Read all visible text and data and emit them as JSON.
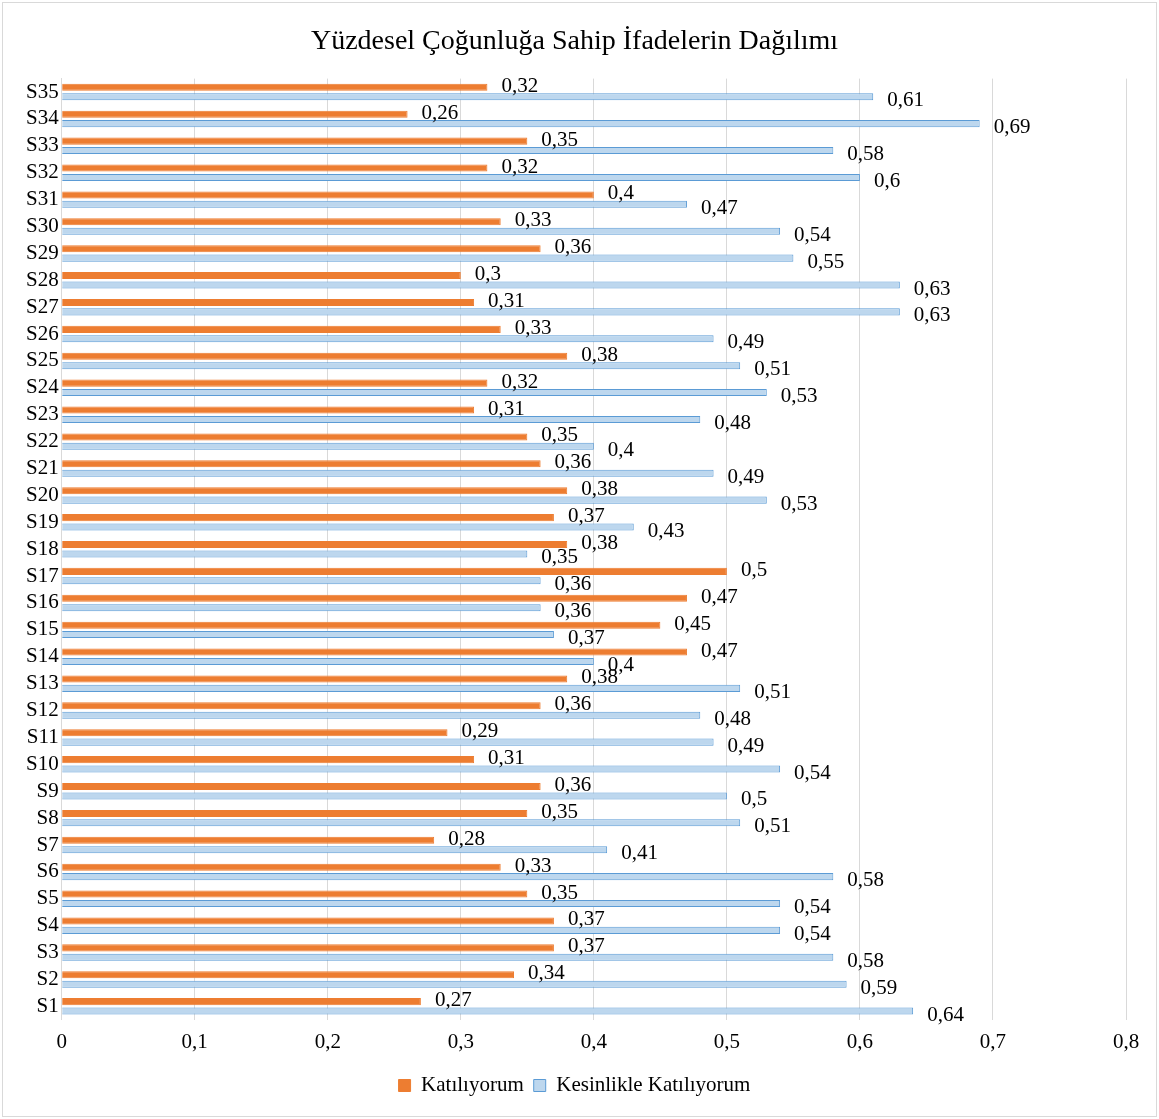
{
  "chart_data": {
    "type": "bar",
    "orientation": "horizontal",
    "title": "Yüzdesel Çoğunluğa Sahip İfadelerin Dağılımı",
    "categories": [
      "S35",
      "S34",
      "S33",
      "S32",
      "S31",
      "S30",
      "S29",
      "S28",
      "S27",
      "S26",
      "S25",
      "S24",
      "S23",
      "S22",
      "S21",
      "S20",
      "S19",
      "S18",
      "S17",
      "S16",
      "S15",
      "S14",
      "S13",
      "S12",
      "S11",
      "S10",
      "S9",
      "S8",
      "S7",
      "S6",
      "S5",
      "S4",
      "S3",
      "S2",
      "S1"
    ],
    "series": [
      {
        "name": "Katılıyorum",
        "color": "#ed7d31",
        "values": [
          0.32,
          0.26,
          0.35,
          0.32,
          0.4,
          0.33,
          0.36,
          0.3,
          0.31,
          0.33,
          0.38,
          0.32,
          0.31,
          0.35,
          0.36,
          0.38,
          0.37,
          0.38,
          0.5,
          0.47,
          0.45,
          0.47,
          0.38,
          0.36,
          0.29,
          0.31,
          0.36,
          0.35,
          0.28,
          0.33,
          0.35,
          0.37,
          0.37,
          0.34,
          0.27
        ],
        "value_labels": [
          "0,32",
          "0,26",
          "0,35",
          "0,32",
          "0,4",
          "0,33",
          "0,36",
          "0,3",
          "0,31",
          "0,33",
          "0,38",
          "0,32",
          "0,31",
          "0,35",
          "0,36",
          "0,38",
          "0,37",
          "0,38",
          "0,5",
          "0,47",
          "0,45",
          "0,47",
          "0,38",
          "0,36",
          "0,29",
          "0,31",
          "0,36",
          "0,35",
          "0,28",
          "0,33",
          "0,35",
          "0,37",
          "0,37",
          "0,34",
          "0,27"
        ]
      },
      {
        "name": "Kesinlikle Katılıyorum",
        "color": "#bdd7ee",
        "values": [
          0.61,
          0.69,
          0.58,
          0.6,
          0.47,
          0.54,
          0.55,
          0.63,
          0.63,
          0.49,
          0.51,
          0.53,
          0.48,
          0.4,
          0.49,
          0.53,
          0.43,
          0.35,
          0.36,
          0.36,
          0.37,
          0.4,
          0.51,
          0.48,
          0.49,
          0.54,
          0.5,
          0.51,
          0.41,
          0.58,
          0.54,
          0.54,
          0.58,
          0.59,
          0.64
        ],
        "value_labels": [
          "0,61",
          "0,69",
          "0,58",
          "0,6",
          "0,47",
          "0,54",
          "0,55",
          "0,63",
          "0,63",
          "0,49",
          "0,51",
          "0,53",
          "0,48",
          "0,4",
          "0,49",
          "0,53",
          "0,43",
          "0,35",
          "0,36",
          "0,36",
          "0,37",
          "0,4",
          "0,51",
          "0,48",
          "0,49",
          "0,54",
          "0,5",
          "0,51",
          "0,41",
          "0,58",
          "0,54",
          "0,54",
          "0,58",
          "0,59",
          "0,64"
        ]
      }
    ],
    "xlim": [
      0,
      0.8
    ],
    "xticks": [
      0,
      {
        "value": 0.1,
        "label": "0,1"
      },
      {
        "value": 0.2,
        "label": "0,2"
      },
      {
        "value": 0.3,
        "label": "0,3"
      },
      {
        "value": 0.4,
        "label": "0,4"
      },
      {
        "value": 0.5,
        "label": "0,5"
      },
      {
        "value": 0.6,
        "label": "0,6"
      },
      {
        "value": 0.7,
        "label": "0,7"
      },
      {
        "value": 0.8,
        "label": "0,8"
      }
    ],
    "grid": "x",
    "legend": "bottom"
  }
}
